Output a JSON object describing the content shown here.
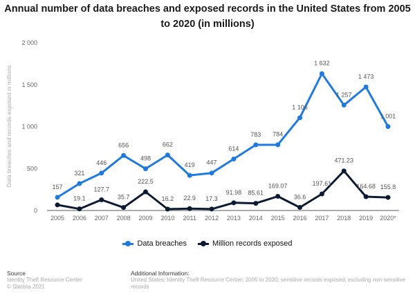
{
  "chart_data": {
    "type": "line",
    "title": "Annual number of data breaches and exposed records in the United States from 2005 to 2020 (in millions)",
    "xlabel": "",
    "ylabel": "Data breaches and records exposed in millions",
    "ylim": [
      0,
      2000
    ],
    "yticks": [
      0,
      500,
      1000,
      1500,
      2000
    ],
    "ytick_labels": [
      "0",
      "500",
      "1 000",
      "1 500",
      "2 000"
    ],
    "grid": false,
    "legend_position": "bottom",
    "categories": [
      "2005",
      "2006",
      "2007",
      "2008",
      "2009",
      "2010",
      "2011",
      "2012",
      "2013",
      "2014",
      "2015",
      "2016",
      "2017",
      "2018",
      "2019",
      "2020*"
    ],
    "series": [
      {
        "name": "Data breaches",
        "color": "#1f7ae0",
        "values": [
          157,
          321,
          446,
          656,
          498,
          662,
          419,
          447,
          614,
          783,
          784,
          1106,
          1632,
          1257,
          1473,
          1001
        ],
        "labels": [
          "157",
          "321",
          "446",
          "656",
          "498",
          "662",
          "419",
          "447",
          "614",
          "783",
          "784",
          "1 106",
          "1 632",
          "1 257",
          "1 473",
          "1 001"
        ]
      },
      {
        "name": "Million records exposed",
        "color": "#0d1a33",
        "values": [
          66.9,
          19.1,
          127.7,
          35.7,
          222.5,
          16.2,
          22.9,
          17.3,
          91.98,
          85.61,
          169.07,
          36.6,
          197.61,
          471.23,
          164.68,
          155.8
        ],
        "labels": [
          "",
          "19.1",
          "127.7",
          "35.7",
          "222.5",
          "16.2",
          "22.9",
          "17.3",
          "91.98",
          "85.61",
          "169.07",
          "36.6",
          "197.61",
          "471.23",
          "164.68",
          "155.8"
        ]
      }
    ]
  },
  "footer": {
    "source_heading": "Source",
    "source_lines": [
      "Identity Theft Resource Center",
      "© Statista 2021"
    ],
    "info_heading": "Additional Information:",
    "info_text": "United States; Identity Theft Resource Center; 2005 to 2020; sensitive records exposed; excluding non-sensitive records"
  }
}
